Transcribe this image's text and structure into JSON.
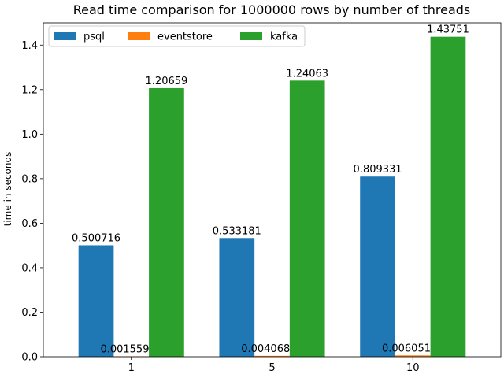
{
  "chart_data": {
    "type": "bar",
    "title": "Read time comparison for 1000000 rows by number of threads",
    "xlabel": "",
    "ylabel": "time in seconds",
    "categories": [
      "1",
      "5",
      "10"
    ],
    "series": [
      {
        "name": "psql",
        "color": "#1f77b4",
        "values": [
          0.500716,
          0.533181,
          0.809331
        ],
        "labels": [
          "0.500716",
          "0.533181",
          "0.809331"
        ]
      },
      {
        "name": "eventstore",
        "color": "#ff7f0e",
        "values": [
          0.00155981,
          0.00406869,
          0.00605134
        ],
        "labels": [
          "0.00155981",
          "0.00406869",
          "0.00605134"
        ]
      },
      {
        "name": "kafka",
        "color": "#2ca02c",
        "values": [
          1.20659,
          1.24063,
          1.43751
        ],
        "labels": [
          "1.20659",
          "1.24063",
          "1.43751"
        ]
      }
    ],
    "ylim": [
      0,
      1.5
    ],
    "yticks": [
      0.0,
      0.2,
      0.4,
      0.6,
      0.8,
      1.0,
      1.2,
      1.4
    ],
    "ytick_labels": [
      "0.0",
      "0.2",
      "0.4",
      "0.6",
      "0.8",
      "1.0",
      "1.2",
      "1.4"
    ],
    "grid": false,
    "legend_position": "top-left"
  }
}
